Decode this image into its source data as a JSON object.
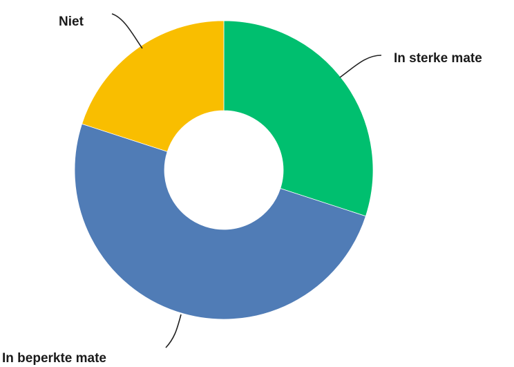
{
  "chart_data": {
    "type": "pie",
    "variant": "donut",
    "title": "",
    "categories": [
      "In sterke mate",
      "In beperkte mate",
      "Niet"
    ],
    "values": [
      30,
      50,
      20
    ],
    "unit": "%",
    "colors": [
      "#00bf6f",
      "#507cb6",
      "#f9be00"
    ],
    "start_angle_deg": 0,
    "direction": "clockwise",
    "legend": "none",
    "labels": "outside-with-leader-lines"
  }
}
